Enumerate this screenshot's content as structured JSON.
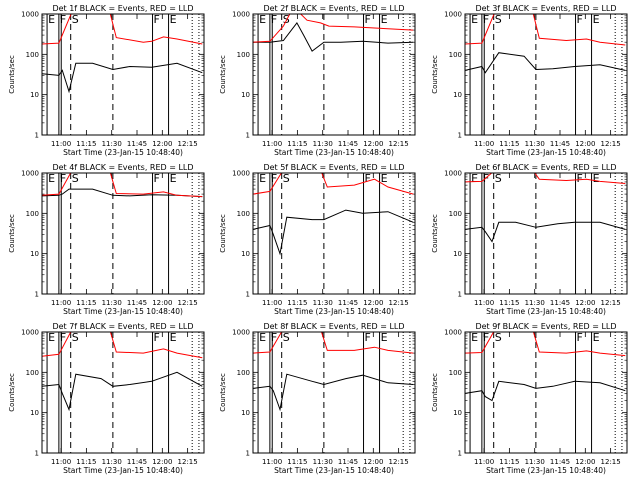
{
  "chart_data": {
    "type": "line",
    "y_scale": "log",
    "ylim": [
      1,
      1000
    ],
    "y_ticks": [
      1,
      10,
      100,
      1000
    ],
    "x_ticks": [
      "11:00",
      "11:15",
      "11:30",
      "11:45",
      "12:00",
      "12:15"
    ],
    "x_tick_minutes": [
      11.3,
      26.3,
      41.3,
      56.3,
      71.3,
      86.3
    ],
    "xlim_minutes": [
      0,
      96
    ],
    "xlabel": "Start Time (23-Jan-15 10:48:40)",
    "ylabel": "Counts/sec",
    "event_lines": [
      {
        "minute": 3.0,
        "style": "solid",
        "label": "E"
      },
      {
        "minute": 10.0,
        "style": "solid",
        "label": "F"
      },
      {
        "minute": 11.4,
        "style": "solid",
        "label": ""
      },
      {
        "minute": 17.0,
        "style": "dashed",
        "label": "S"
      },
      {
        "minute": 42.0,
        "style": "dashed",
        "label": ""
      },
      {
        "minute": 65.5,
        "style": "solid",
        "label": "F"
      },
      {
        "minute": 75.0,
        "style": "solid",
        "label": "E"
      },
      {
        "minute": 89.0,
        "style": "dotted",
        "label": ""
      },
      {
        "minute": 93.0,
        "style": "dotted",
        "label": ""
      }
    ],
    "series_styles": [
      {
        "key": "events",
        "color": "#000000"
      },
      {
        "key": "lld",
        "color": "#ff0000"
      }
    ],
    "panels": [
      {
        "title": "Det 1f BLACK = Events, RED = LLD",
        "events": [
          [
            0,
            33
          ],
          [
            10,
            30
          ],
          [
            12,
            40
          ],
          [
            16,
            12
          ],
          [
            20,
            60
          ],
          [
            30,
            60
          ],
          [
            42,
            42
          ],
          [
            52,
            50
          ],
          [
            65,
            48
          ],
          [
            80,
            60
          ],
          [
            95,
            35
          ]
        ],
        "lld": [
          [
            0,
            180
          ],
          [
            10,
            190
          ],
          [
            18,
            1200
          ],
          [
            40,
            1200
          ],
          [
            44,
            260
          ],
          [
            60,
            200
          ],
          [
            65,
            210
          ],
          [
            72,
            270
          ],
          [
            80,
            240
          ],
          [
            95,
            180
          ]
        ]
      },
      {
        "title": "Det 2f BLACK = Events, RED = LLD",
        "events": [
          [
            0,
            200
          ],
          [
            10,
            200
          ],
          [
            18,
            220
          ],
          [
            26,
            600
          ],
          [
            30,
            300
          ],
          [
            35,
            120
          ],
          [
            42,
            200
          ],
          [
            52,
            200
          ],
          [
            65,
            210
          ],
          [
            80,
            190
          ],
          [
            95,
            200
          ]
        ],
        "lld": [
          [
            0,
            200
          ],
          [
            10,
            210
          ],
          [
            18,
            500
          ],
          [
            24,
            1500
          ],
          [
            32,
            700
          ],
          [
            40,
            600
          ],
          [
            45,
            500
          ],
          [
            60,
            480
          ],
          [
            72,
            450
          ],
          [
            95,
            400
          ]
        ]
      },
      {
        "title": "Det 3f BLACK = Events, RED = LLD",
        "events": [
          [
            0,
            40
          ],
          [
            10,
            50
          ],
          [
            12,
            35
          ],
          [
            20,
            110
          ],
          [
            35,
            90
          ],
          [
            42,
            42
          ],
          [
            52,
            44
          ],
          [
            65,
            50
          ],
          [
            80,
            55
          ],
          [
            95,
            40
          ]
        ],
        "lld": [
          [
            0,
            180
          ],
          [
            10,
            190
          ],
          [
            18,
            1200
          ],
          [
            40,
            1200
          ],
          [
            44,
            250
          ],
          [
            60,
            220
          ],
          [
            72,
            240
          ],
          [
            80,
            200
          ],
          [
            95,
            170
          ]
        ]
      },
      {
        "title": "Det 4f BLACK = Events, RED = LLD",
        "events": [
          [
            0,
            270
          ],
          [
            10,
            280
          ],
          [
            12,
            300
          ],
          [
            16,
            400
          ],
          [
            30,
            400
          ],
          [
            42,
            280
          ],
          [
            52,
            270
          ],
          [
            65,
            290
          ],
          [
            80,
            280
          ],
          [
            95,
            260
          ]
        ],
        "lld": [
          [
            0,
            280
          ],
          [
            10,
            300
          ],
          [
            18,
            1200
          ],
          [
            40,
            1200
          ],
          [
            44,
            310
          ],
          [
            60,
            300
          ],
          [
            72,
            340
          ],
          [
            80,
            280
          ],
          [
            95,
            260
          ]
        ]
      },
      {
        "title": "Det 5f BLACK = Events, RED = LLD",
        "events": [
          [
            0,
            40
          ],
          [
            10,
            50
          ],
          [
            12,
            30
          ],
          [
            16,
            10
          ],
          [
            20,
            80
          ],
          [
            35,
            70
          ],
          [
            42,
            70
          ],
          [
            55,
            120
          ],
          [
            65,
            100
          ],
          [
            80,
            110
          ],
          [
            95,
            60
          ]
        ],
        "lld": [
          [
            0,
            300
          ],
          [
            10,
            350
          ],
          [
            18,
            1200
          ],
          [
            40,
            1200
          ],
          [
            44,
            450
          ],
          [
            60,
            500
          ],
          [
            72,
            700
          ],
          [
            80,
            450
          ],
          [
            95,
            300
          ]
        ]
      },
      {
        "title": "Det 6f BLACK = Events, RED = LLD",
        "events": [
          [
            0,
            40
          ],
          [
            10,
            45
          ],
          [
            12,
            35
          ],
          [
            16,
            20
          ],
          [
            20,
            60
          ],
          [
            30,
            60
          ],
          [
            42,
            45
          ],
          [
            55,
            55
          ],
          [
            65,
            60
          ],
          [
            80,
            60
          ],
          [
            95,
            40
          ]
        ],
        "lld": [
          [
            0,
            600
          ],
          [
            10,
            620
          ],
          [
            18,
            1200
          ],
          [
            40,
            1200
          ],
          [
            44,
            700
          ],
          [
            60,
            650
          ],
          [
            72,
            700
          ],
          [
            80,
            620
          ],
          [
            95,
            550
          ]
        ]
      },
      {
        "title": "Det 7f BLACK = Events, RED = LLD",
        "events": [
          [
            0,
            45
          ],
          [
            10,
            50
          ],
          [
            12,
            30
          ],
          [
            16,
            12
          ],
          [
            20,
            90
          ],
          [
            35,
            70
          ],
          [
            42,
            45
          ],
          [
            52,
            50
          ],
          [
            65,
            60
          ],
          [
            80,
            100
          ],
          [
            95,
            45
          ]
        ],
        "lld": [
          [
            0,
            250
          ],
          [
            10,
            280
          ],
          [
            18,
            1200
          ],
          [
            40,
            1200
          ],
          [
            44,
            320
          ],
          [
            60,
            300
          ],
          [
            72,
            380
          ],
          [
            80,
            300
          ],
          [
            95,
            230
          ]
        ]
      },
      {
        "title": "Det 8f BLACK = Events, RED = LLD",
        "events": [
          [
            0,
            40
          ],
          [
            10,
            45
          ],
          [
            12,
            35
          ],
          [
            16,
            12
          ],
          [
            20,
            90
          ],
          [
            35,
            60
          ],
          [
            42,
            50
          ],
          [
            55,
            70
          ],
          [
            65,
            85
          ],
          [
            80,
            55
          ],
          [
            95,
            50
          ]
        ],
        "lld": [
          [
            0,
            300
          ],
          [
            10,
            320
          ],
          [
            18,
            1200
          ],
          [
            40,
            1200
          ],
          [
            44,
            350
          ],
          [
            60,
            350
          ],
          [
            72,
            420
          ],
          [
            80,
            350
          ],
          [
            95,
            300
          ]
        ]
      },
      {
        "title": "Det 9f BLACK = Events, RED = LLD",
        "events": [
          [
            0,
            30
          ],
          [
            10,
            35
          ],
          [
            12,
            25
          ],
          [
            16,
            20
          ],
          [
            20,
            60
          ],
          [
            35,
            50
          ],
          [
            42,
            40
          ],
          [
            52,
            45
          ],
          [
            65,
            60
          ],
          [
            80,
            55
          ],
          [
            95,
            35
          ]
        ],
        "lld": [
          [
            0,
            300
          ],
          [
            10,
            310
          ],
          [
            18,
            1200
          ],
          [
            40,
            1200
          ],
          [
            44,
            320
          ],
          [
            60,
            300
          ],
          [
            72,
            340
          ],
          [
            80,
            300
          ],
          [
            95,
            260
          ]
        ]
      }
    ]
  }
}
